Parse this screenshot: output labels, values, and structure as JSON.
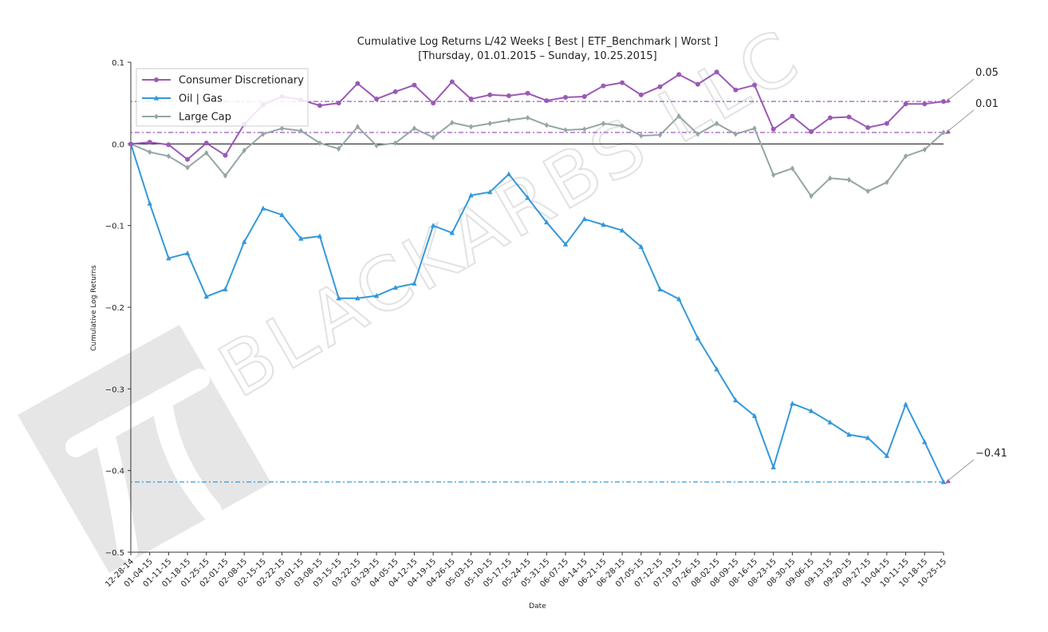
{
  "chart_data": {
    "type": "line",
    "title": "Cumulative Log Returns L/42 Weeks [ Best | ETF_Benchmark | Worst ]",
    "subtitle": "[Thursday, 01.01.2015 – Sunday, 10.25.2015]",
    "xlabel": "Date",
    "ylabel": "Cumulative Log Returns",
    "ylim": [
      -0.5,
      0.1
    ],
    "yticks": [
      "0.1",
      "0.0",
      "−0.1",
      "−0.2",
      "−0.3",
      "−0.4",
      "−0.5"
    ],
    "ytick_values": [
      0.1,
      0.0,
      -0.1,
      -0.2,
      -0.3,
      -0.4,
      -0.5
    ],
    "grid": false,
    "legend_position": "top-left",
    "watermark": "BLACKARBS LLC",
    "categories": [
      "12-28-14",
      "01-04-15",
      "01-11-15",
      "01-18-15",
      "01-25-15",
      "02-01-15",
      "02-08-15",
      "02-15-15",
      "02-22-15",
      "03-01-15",
      "03-08-15",
      "03-15-15",
      "03-22-15",
      "03-29-15",
      "04-05-15",
      "04-12-15",
      "04-19-15",
      "04-26-15",
      "05-03-15",
      "05-10-15",
      "05-17-15",
      "05-24-15",
      "05-31-15",
      "06-07-15",
      "06-14-15",
      "06-21-15",
      "06-28-15",
      "07-05-15",
      "07-12-15",
      "07-19-15",
      "07-26-15",
      "08-02-15",
      "08-09-15",
      "08-16-15",
      "08-23-15",
      "08-30-15",
      "09-06-15",
      "09-13-15",
      "09-20-15",
      "09-27-15",
      "10-04-15",
      "10-11-15",
      "10-18-15",
      "10-25-15"
    ],
    "series": [
      {
        "name": "Consumer Discretionary",
        "color": "#9b59b6",
        "marker": "circle",
        "values": [
          0.0,
          0.002,
          -0.001,
          -0.019,
          0.001,
          -0.014,
          0.024,
          0.048,
          0.058,
          0.054,
          0.047,
          0.05,
          0.074,
          0.055,
          0.064,
          0.072,
          0.05,
          0.076,
          0.055,
          0.06,
          0.059,
          0.062,
          0.053,
          0.057,
          0.058,
          0.071,
          0.075,
          0.06,
          0.07,
          0.085,
          0.073,
          0.088,
          0.066,
          0.072,
          0.018,
          0.034,
          0.015,
          0.032,
          0.033,
          0.02,
          0.025,
          0.049,
          0.049,
          0.052
        ]
      },
      {
        "name": "Oil | Gas",
        "color": "#3498db",
        "marker": "triangle",
        "values": [
          0.0,
          -0.073,
          -0.14,
          -0.134,
          -0.187,
          -0.178,
          -0.12,
          -0.079,
          -0.087,
          -0.116,
          -0.113,
          -0.189,
          -0.189,
          -0.186,
          -0.176,
          -0.171,
          -0.1,
          -0.109,
          -0.063,
          -0.059,
          -0.037,
          -0.066,
          -0.096,
          -0.123,
          -0.092,
          -0.099,
          -0.106,
          -0.126,
          -0.178,
          -0.19,
          -0.238,
          -0.276,
          -0.314,
          -0.333,
          -0.396,
          -0.318,
          -0.327,
          -0.341,
          -0.356,
          -0.36,
          -0.382,
          -0.319,
          -0.365,
          -0.414
        ]
      },
      {
        "name": "Large Cap",
        "color": "#95a5a6",
        "marker": "diamond",
        "values": [
          0.0,
          -0.01,
          -0.015,
          -0.029,
          -0.011,
          -0.039,
          -0.008,
          0.012,
          0.019,
          0.016,
          0.001,
          -0.006,
          0.021,
          -0.002,
          0.001,
          0.019,
          0.008,
          0.026,
          0.021,
          0.025,
          0.029,
          0.032,
          0.023,
          0.017,
          0.018,
          0.025,
          0.022,
          0.01,
          0.011,
          0.034,
          0.012,
          0.025,
          0.012,
          0.019,
          -0.038,
          -0.03,
          -0.064,
          -0.042,
          -0.044,
          -0.058,
          -0.047,
          -0.015,
          -0.007,
          0.014
        ]
      }
    ],
    "end_labels": [
      {
        "text": "0.05",
        "value": 0.052,
        "color": "#9b59b6"
      },
      {
        "text": "0.01",
        "value": 0.014,
        "color": "#9b59b6"
      },
      {
        "text": "−0.41",
        "value": -0.414,
        "color": "#9b59b6"
      }
    ],
    "reference_lines": [
      {
        "value": 0.052,
        "color": "#9b59b6"
      },
      {
        "value": 0.014,
        "color": "#9b59b6"
      },
      {
        "value": -0.414,
        "color": "#3498db"
      }
    ],
    "zero_line": 0.0
  }
}
